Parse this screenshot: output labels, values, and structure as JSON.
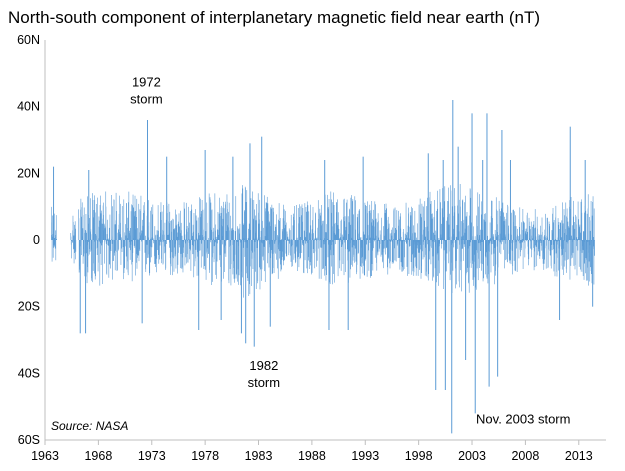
{
  "chart_data": {
    "type": "line",
    "title": "North-south component of interplanetary magnetic field near earth (nT)",
    "xlabel": "",
    "ylabel": "",
    "x_range": [
      1963,
      2014.8
    ],
    "ylim": [
      -60,
      60
    ],
    "x_tick_labels": [
      "1963",
      "1968",
      "1973",
      "1978",
      "1983",
      "1988",
      "1993",
      "1998",
      "2003",
      "2008",
      "2013"
    ],
    "x_tick_values": [
      1963,
      1968,
      1973,
      1978,
      1983,
      1988,
      1993,
      1998,
      2003,
      2008,
      2013
    ],
    "y_tick_labels": [
      "60N",
      "40N",
      "20N",
      "0",
      "20S",
      "40S",
      "60S"
    ],
    "y_tick_values": [
      60,
      40,
      20,
      0,
      -20,
      -40,
      -60
    ],
    "series_color": "#5b9bd5",
    "envelope": [
      {
        "x": 1963.6,
        "max": 10,
        "min": -8
      },
      {
        "x": 1965.5,
        "max": 9,
        "min": -6
      },
      {
        "x": 1966.5,
        "max": 13,
        "min": -13
      },
      {
        "x": 1968,
        "max": 15,
        "min": -14
      },
      {
        "x": 1970,
        "max": 15,
        "min": -12
      },
      {
        "x": 1972,
        "max": 14,
        "min": -13
      },
      {
        "x": 1974,
        "max": 12,
        "min": -11
      },
      {
        "x": 1976,
        "max": 12,
        "min": -11
      },
      {
        "x": 1978,
        "max": 14,
        "min": -13
      },
      {
        "x": 1980,
        "max": 16,
        "min": -15
      },
      {
        "x": 1982,
        "max": 17,
        "min": -18
      },
      {
        "x": 1984,
        "max": 14,
        "min": -13
      },
      {
        "x": 1986,
        "max": 10,
        "min": -10
      },
      {
        "x": 1988,
        "max": 12,
        "min": -11
      },
      {
        "x": 1990,
        "max": 15,
        "min": -14
      },
      {
        "x": 1992,
        "max": 14,
        "min": -13
      },
      {
        "x": 1994,
        "max": 12,
        "min": -11
      },
      {
        "x": 1996,
        "max": 10,
        "min": -10
      },
      {
        "x": 1998,
        "max": 13,
        "min": -12
      },
      {
        "x": 2000,
        "max": 16,
        "min": -15
      },
      {
        "x": 2002,
        "max": 17,
        "min": -17
      },
      {
        "x": 2004,
        "max": 15,
        "min": -15
      },
      {
        "x": 2006,
        "max": 12,
        "min": -12
      },
      {
        "x": 2008,
        "max": 9,
        "min": -9
      },
      {
        "x": 2010,
        "max": 10,
        "min": -10
      },
      {
        "x": 2012,
        "max": 13,
        "min": -13
      },
      {
        "x": 2014.5,
        "max": 14,
        "min": -14
      }
    ],
    "spikes": [
      {
        "x": 1963.8,
        "y": 22
      },
      {
        "x": 1966.3,
        "y": -28
      },
      {
        "x": 1966.8,
        "y": -28
      },
      {
        "x": 1967.1,
        "y": 21
      },
      {
        "x": 1972.1,
        "y": -25
      },
      {
        "x": 1972.6,
        "y": 36
      },
      {
        "x": 1974.4,
        "y": 25
      },
      {
        "x": 1977.4,
        "y": -27
      },
      {
        "x": 1978.0,
        "y": 27
      },
      {
        "x": 1979.5,
        "y": -24
      },
      {
        "x": 1980.6,
        "y": 25
      },
      {
        "x": 1981.4,
        "y": -28
      },
      {
        "x": 1981.8,
        "y": -31
      },
      {
        "x": 1982.2,
        "y": 29
      },
      {
        "x": 1982.6,
        "y": -32
      },
      {
        "x": 1983.3,
        "y": 31
      },
      {
        "x": 1984.1,
        "y": -26
      },
      {
        "x": 1989.2,
        "y": 24
      },
      {
        "x": 1989.6,
        "y": -27
      },
      {
        "x": 1991.4,
        "y": -27
      },
      {
        "x": 1992.8,
        "y": 25
      },
      {
        "x": 1998.9,
        "y": 26
      },
      {
        "x": 1999.6,
        "y": -45
      },
      {
        "x": 2000.3,
        "y": 24
      },
      {
        "x": 2000.5,
        "y": -45
      },
      {
        "x": 2001.1,
        "y": -58
      },
      {
        "x": 2001.2,
        "y": 42
      },
      {
        "x": 2001.7,
        "y": 28
      },
      {
        "x": 2002.4,
        "y": -36
      },
      {
        "x": 2003.0,
        "y": 38
      },
      {
        "x": 2003.3,
        "y": -52
      },
      {
        "x": 2004.0,
        "y": 24
      },
      {
        "x": 2004.4,
        "y": 38
      },
      {
        "x": 2004.6,
        "y": -44
      },
      {
        "x": 2005.4,
        "y": -41
      },
      {
        "x": 2005.8,
        "y": 33
      },
      {
        "x": 2006.6,
        "y": 24
      },
      {
        "x": 2011.2,
        "y": -24
      },
      {
        "x": 2012.2,
        "y": 34
      },
      {
        "x": 2013.6,
        "y": 24
      },
      {
        "x": 2014.3,
        "y": -20
      }
    ],
    "annotations": [
      {
        "lines": [
          "1972",
          "storm"
        ],
        "x": 1972.5,
        "y": 46
      },
      {
        "lines": [
          "1982",
          "storm"
        ],
        "x": 1983.5,
        "y": -39
      },
      {
        "lines": [
          "Nov. 2003 storm"
        ],
        "x": 2007.8,
        "y": -55
      }
    ],
    "source_note": "Source: NASA"
  }
}
